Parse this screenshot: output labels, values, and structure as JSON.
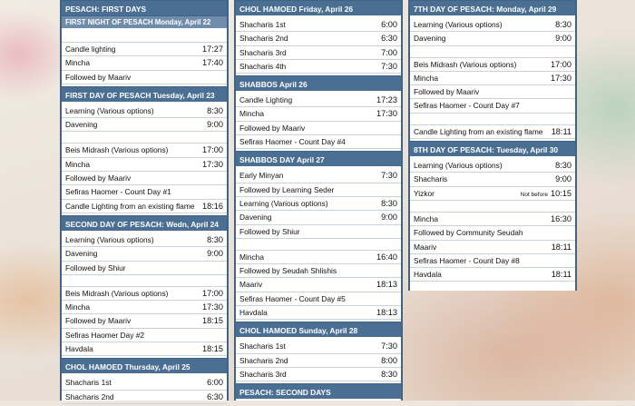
{
  "columns": [
    {
      "sections": [
        {
          "title": "PESACH: FIRST DAYS",
          "style": "main",
          "rows": []
        },
        {
          "title": "FIRST NIGHT OF PESACH Monday, April 22",
          "style": "sub",
          "rows": [
            {
              "label": "",
              "time": ""
            },
            {
              "label": "Candle lighting",
              "time": "17:27"
            },
            {
              "label": "Mincha",
              "time": "17:40"
            },
            {
              "label": "Followed by Maariv",
              "time": ""
            }
          ]
        },
        {
          "title": "FIRST DAY OF PESACH Tuesday, April 23",
          "style": "main",
          "rows": [
            {
              "label": "Learning (Various options)",
              "time": "8:30"
            },
            {
              "label": "Davening",
              "time": "9:00"
            },
            {
              "label": "",
              "time": ""
            },
            {
              "label": "Beis Midrash (Various options)",
              "time": "17:00"
            },
            {
              "label": "Mincha",
              "time": "17:30"
            },
            {
              "label": "Followed by Maariv",
              "time": ""
            },
            {
              "label": "Sefiras Haomer - Count Day #1",
              "time": ""
            },
            {
              "label": "Candle Lighting from an existing flame",
              "time": "18:16"
            }
          ]
        },
        {
          "title": "SECOND DAY OF PESACH: Wedn, April 24",
          "style": "main",
          "rows": [
            {
              "label": "Learning (Various options)",
              "time": "8:30"
            },
            {
              "label": "Davening",
              "time": "9:00"
            },
            {
              "label": "Followed by Shiur",
              "time": ""
            },
            {
              "label": "",
              "time": ""
            },
            {
              "label": "Beis Midrash (Various options)",
              "time": "17:00"
            },
            {
              "label": "Mincha",
              "time": "17:30"
            },
            {
              "label": "Followed by Maariv",
              "time": "18:15"
            },
            {
              "label": "Sefiras Haomer Day #2",
              "time": ""
            },
            {
              "label": "Havdala",
              "time": "18:15"
            }
          ]
        },
        {
          "title": "CHOL HAMOED Thursday, April 25",
          "style": "main",
          "rows": [
            {
              "label": "Shacharis 1st",
              "time": "6:00"
            },
            {
              "label": "Shacharis 2nd",
              "time": "6:30"
            }
          ]
        }
      ]
    },
    {
      "sections": [
        {
          "title": "CHOL HAMOED Friday, April 26",
          "style": "main",
          "rows": [
            {
              "label": "Shacharis 1st",
              "time": "6:00"
            },
            {
              "label": "Shacharis 2nd",
              "time": "6:30"
            },
            {
              "label": "Shacharis 3rd",
              "time": "7:00"
            },
            {
              "label": "Shacharis 4th",
              "time": "7:30"
            }
          ]
        },
        {
          "title": "SHABBOS April 26",
          "style": "main",
          "rows": [
            {
              "label": "Candle Lighting",
              "time": "17:23"
            },
            {
              "label": "Mincha",
              "time": "17:30"
            },
            {
              "label": "Followed by Maariv",
              "time": ""
            },
            {
              "label": "Sefiras Haomer - Count Day #4",
              "time": ""
            }
          ]
        },
        {
          "title": "SHABBOS DAY April 27",
          "style": "main",
          "rows": [
            {
              "label": "Early Minyan",
              "time": "7:30"
            },
            {
              "label": "Followed by Learning Seder",
              "time": ""
            },
            {
              "label": "Learning (Various options)",
              "time": "8:30"
            },
            {
              "label": "Davening",
              "time": "9:00"
            },
            {
              "label": "Followed by Shiur",
              "time": ""
            },
            {
              "label": "",
              "time": ""
            },
            {
              "label": "Mincha",
              "time": "16:40"
            },
            {
              "label": "Followed by Seudah Shlishis",
              "time": ""
            },
            {
              "label": "Maariv",
              "time": "18:13"
            },
            {
              "label": "Sefiras Haomer - Count Day #5",
              "time": ""
            },
            {
              "label": "Havdala",
              "time": "18:13"
            }
          ]
        },
        {
          "title": "CHOL HAMOED Sunday, April 28",
          "style": "main",
          "rows": [
            {
              "label": "Shacharis 1st",
              "time": "7:30"
            },
            {
              "label": "Shacharis 2nd",
              "time": "8:00"
            },
            {
              "label": "Shacharis 3rd",
              "time": "8:30"
            }
          ]
        },
        {
          "title": "PESACH: SECOND DAYS",
          "style": "main",
          "rows": []
        }
      ]
    },
    {
      "sections": [
        {
          "title": "7TH DAY OF PESACH: Monday, April 29",
          "style": "main",
          "rows": [
            {
              "label": "Learning (Various options)",
              "time": "8:30"
            },
            {
              "label": "Davening",
              "time": "9:00"
            },
            {
              "label": "",
              "time": ""
            },
            {
              "label": "Beis Midrash (Various options)",
              "time": "17:00"
            },
            {
              "label": "Mincha",
              "time": "17:30"
            },
            {
              "label": "Followed by Maariv",
              "time": ""
            },
            {
              "label": "Sefiras Haomer - Count Day #7",
              "time": ""
            },
            {
              "label": "",
              "time": ""
            },
            {
              "label": "Candle Lighting from an existing flame",
              "time": "18:11"
            }
          ]
        },
        {
          "title": "8TH DAY OF PESACH: Tuesday, April 30",
          "style": "main",
          "rows": [
            {
              "label": "Learning (Various options)",
              "time": "8:30"
            },
            {
              "label": "Shacharis",
              "time": "9:00"
            },
            {
              "label": "Yizkor",
              "note": "Not before",
              "time": "10:15"
            },
            {
              "label": "",
              "time": ""
            },
            {
              "label": "Mincha",
              "time": "16:30"
            },
            {
              "label": "Followed by Community Seudah",
              "time": ""
            },
            {
              "label": "Maariv",
              "time": "18:11"
            },
            {
              "label": "Sefiras Haomer - Count Day #8",
              "time": ""
            },
            {
              "label": "Havdala",
              "time": "18:11"
            }
          ]
        }
      ]
    }
  ]
}
